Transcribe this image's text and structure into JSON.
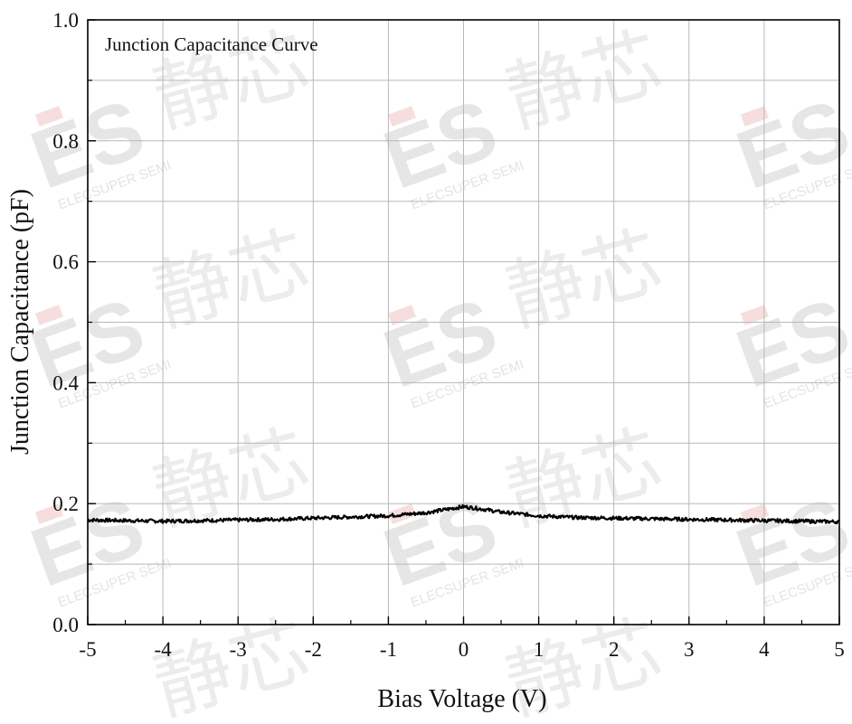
{
  "chart_data": {
    "type": "line",
    "title": "",
    "legend_label": "Junction Capacitance Curve",
    "legend_placement": "top-left",
    "xlabel": "Bias Voltage (V)",
    "ylabel": "Junction Capacitance (pF)",
    "xlim": [
      -5,
      5
    ],
    "ylim": [
      0,
      1.0
    ],
    "grid": true,
    "x_ticks": [
      -5,
      -4,
      -3,
      -2,
      -1,
      0,
      1,
      2,
      3,
      4,
      5
    ],
    "x_tick_labels": [
      "-5",
      "-4",
      "-3",
      "-2",
      "-1",
      "0",
      "1",
      "2",
      "3",
      "4",
      "5"
    ],
    "y_ticks": [
      0.0,
      0.2,
      0.4,
      0.6,
      0.8,
      1.0
    ],
    "y_tick_labels": [
      "0.0",
      "0.2",
      "0.4",
      "0.6",
      "0.8",
      "1.0"
    ],
    "series": [
      {
        "color": "#000000",
        "x": [
          -5,
          -4.5,
          -4,
          -3.5,
          -3,
          -2.5,
          -2,
          -1.5,
          -1,
          -0.5,
          -0.25,
          0,
          0.25,
          0.5,
          1,
          1.5,
          2,
          2.5,
          3,
          3.5,
          4,
          4.5,
          5
        ],
        "values": [
          0.173,
          0.172,
          0.171,
          0.172,
          0.173,
          0.174,
          0.176,
          0.178,
          0.18,
          0.185,
          0.19,
          0.195,
          0.191,
          0.186,
          0.18,
          0.177,
          0.176,
          0.175,
          0.174,
          0.173,
          0.172,
          0.171,
          0.17
        ]
      }
    ]
  },
  "watermark": {
    "brand_letters": "ES",
    "brand_text": "ELECSUPER SEMI",
    "cn_text": "静芯",
    "color": "#e6e6e6",
    "accent_color": "#f6dede"
  }
}
